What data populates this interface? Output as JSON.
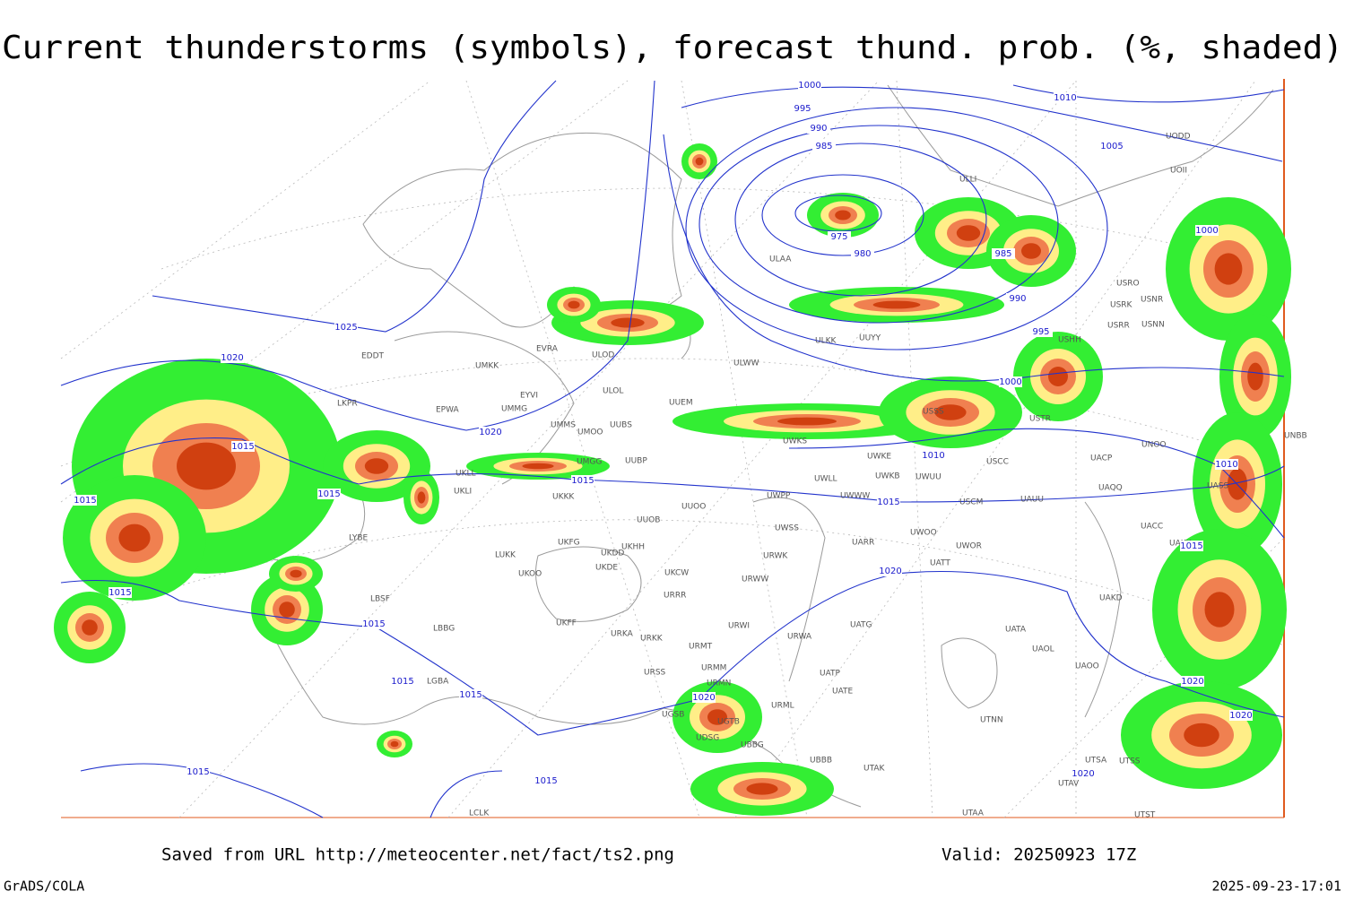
{
  "header": {
    "title": "Current thunderstorms (symbols), forecast thund. prob. (%, shaded)"
  },
  "map": {
    "isobar_labels": [
      "1000",
      "995",
      "990",
      "985",
      "975",
      "980",
      "985",
      "990",
      "995",
      "1000",
      "1005",
      "1010",
      "1000",
      "1025",
      "1020",
      "1015",
      "1015",
      "1015",
      "1015",
      "1015",
      "1015",
      "1015",
      "1015",
      "1015",
      "1020",
      "1015",
      "1010",
      "1015",
      "1020",
      "1010",
      "1015",
      "1020",
      "1020",
      "1020",
      "1020"
    ],
    "stations": [
      "EDDT",
      "LKPR",
      "EPWA",
      "UMKK",
      "EVRA",
      "ULOD",
      "ULOL",
      "EYVI",
      "UMMG",
      "UMMS",
      "UMOO",
      "UUBS",
      "UUEM",
      "ULWW",
      "ULAA",
      "ULKK",
      "UUYY",
      "UMGG",
      "UUBP",
      "UKLL",
      "UKLI",
      "UKKK",
      "UUOO",
      "UUOB",
      "UWKS",
      "UWKE",
      "UWKB",
      "UWUU",
      "UWLL",
      "UWWW",
      "UWPP",
      "USCC",
      "USCM",
      "UAUU",
      "UWSS",
      "UARR",
      "UWOO",
      "UWOR",
      "UATT",
      "LYBE",
      "LUKK",
      "UKOO",
      "UKFG",
      "UKDD",
      "UKHH",
      "UKDE",
      "UKCW",
      "URWK",
      "URWW",
      "URRR",
      "UKFF",
      "URKA",
      "URKK",
      "URWI",
      "URMT",
      "UATG",
      "URWA",
      "UATA",
      "UAOL",
      "UAOO",
      "UATP",
      "UATE",
      "URMM",
      "URMN",
      "URSS",
      "UGSB",
      "URML",
      "UGTB",
      "UDSG",
      "UBBG",
      "UBBB",
      "UTAK",
      "UTNN",
      "LGBA",
      "LBBG",
      "LBSF",
      "UTSA",
      "UTSS",
      "UTAV",
      "UTST",
      "UTAA",
      "LCLK",
      "UAKD",
      "UACC",
      "UAKK",
      "UAQQ",
      "UACP",
      "UNOO",
      "UASS",
      "UNBB",
      "USRR",
      "USNN",
      "USNR",
      "USRK",
      "USRO",
      "USHH",
      "USTR",
      "USSS",
      "UOII",
      "UODD",
      "ULLI"
    ]
  },
  "footer": {
    "saved": "Saved from URL http://meteocenter.net/fact/ts2.png",
    "valid": "Valid: 20250923 17Z",
    "credit": "GrADS/COLA",
    "timestamp": "2025-09-23-17:01"
  }
}
